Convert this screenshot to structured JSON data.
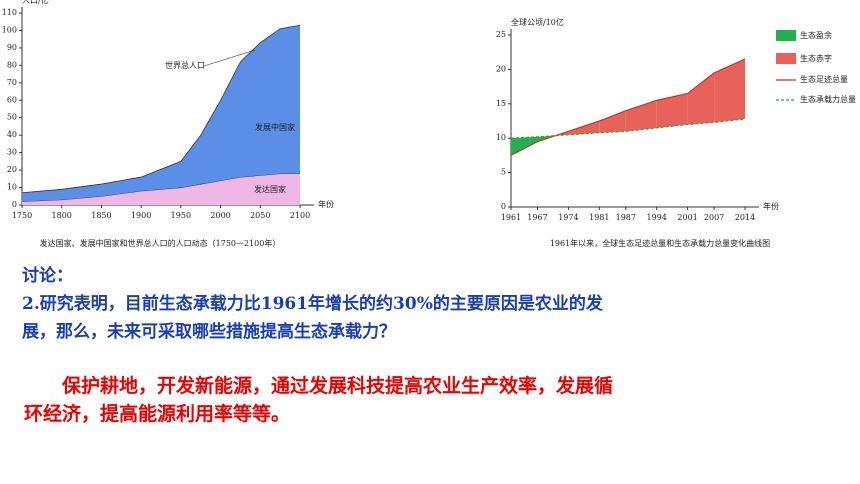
{
  "chart_data": [
    {
      "type": "area",
      "y_label": "人口/亿",
      "x_label": "年份",
      "caption": "发达国家、发展中国家和世界总人口的人口动态（1750—2100年）",
      "annotation": "世界总人口",
      "x": [
        1750,
        1800,
        1850,
        1900,
        1950,
        1975,
        2000,
        2025,
        2050,
        2075,
        2100
      ],
      "series": [
        {
          "name": "发达国家",
          "color": "#f0b6e6",
          "values": [
            2,
            3,
            5,
            8,
            10,
            12,
            14,
            16,
            17,
            18,
            18
          ]
        },
        {
          "name": "发展中国家",
          "color": "#5b8ee6",
          "values": [
            5,
            6,
            7,
            8,
            15,
            28,
            46,
            66,
            76,
            83,
            85
          ]
        }
      ],
      "xlim": [
        1750,
        2100
      ],
      "xticks": [
        1750,
        1800,
        1850,
        1900,
        1950,
        2000,
        2050,
        2100
      ],
      "ylim": [
        0,
        110
      ],
      "yticks": [
        0,
        10,
        20,
        30,
        40,
        50,
        60,
        70,
        80,
        90,
        100,
        110
      ]
    },
    {
      "type": "line",
      "y_label": "全球公顷/10亿",
      "x_label": "年份",
      "caption": "1961年以来，全球生态足迹总量和生态承载力总量变化曲线图",
      "regions": [
        {
          "name": "生态盈余",
          "color": "#22b14c"
        },
        {
          "name": "生态赤字",
          "color": "#e8625c"
        }
      ],
      "x": [
        1961,
        1967,
        1974,
        1981,
        1987,
        1994,
        2001,
        2007,
        2014
      ],
      "series": [
        {
          "name": "生态足迹总量",
          "color": "#c0392b",
          "values": [
            7.5,
            9.5,
            11,
            12.5,
            14,
            15.5,
            16.5,
            19.5,
            21.5
          ]
        },
        {
          "name": "生态承载力总量",
          "color": "#3a9b3a",
          "dash": true,
          "values": [
            10,
            10.2,
            10.5,
            10.8,
            11,
            11.5,
            12,
            12.3,
            12.8
          ]
        }
      ],
      "xlim": [
        1961,
        2014
      ],
      "xticks": [
        1961,
        1967,
        1974,
        1981,
        1987,
        1994,
        2001,
        2007,
        2014
      ],
      "ylim": [
        0,
        25
      ],
      "yticks": [
        0,
        5,
        10,
        15,
        20,
        25
      ]
    }
  ],
  "text": {
    "heading": "讨论：",
    "question": "2.研究表明，目前生态承载力比1961年增长的约30%的主要原因是农业的发展，那么，未来可采取哪些措施提高生态承载力？",
    "answer": "保护耕地，开发新能源，通过发展科技提高农业生产效率，发展循环经济，提高能源利用率等等。"
  }
}
